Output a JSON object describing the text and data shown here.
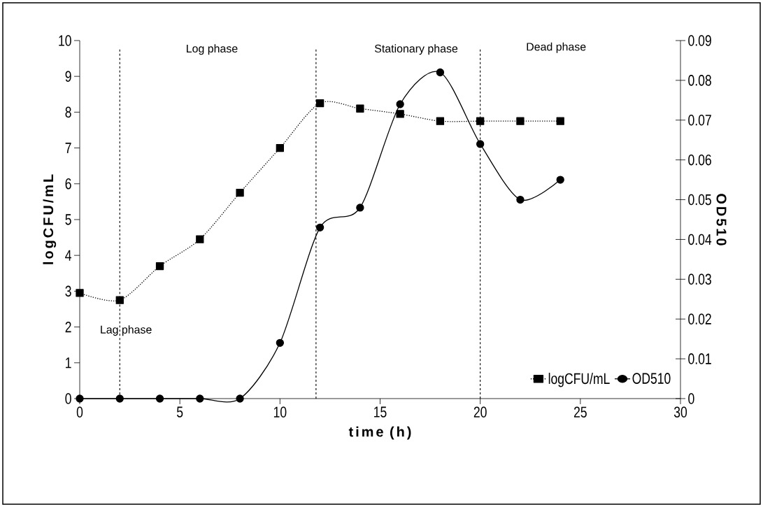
{
  "chart_data": {
    "type": "line",
    "xlabel": "time (h)",
    "ylabel": "logCFU/mL",
    "y2label": "OD510",
    "x": [
      0,
      2,
      4,
      6,
      8,
      10,
      12,
      14,
      16,
      18,
      20,
      22,
      24
    ],
    "series": [
      {
        "name": "logCFU/mL",
        "color": "#000000",
        "marker": "square",
        "line_style": "dotted",
        "values": [
          2.95,
          2.75,
          3.7,
          4.45,
          5.75,
          7.0,
          8.25,
          8.1,
          7.95,
          7.75,
          7.75,
          7.75,
          7.75
        ]
      },
      {
        "name": "OD510",
        "color": "#000000",
        "marker": "circle",
        "line_style": "solid",
        "axis": "y2",
        "values": [
          0,
          0,
          0,
          0,
          0,
          0.014,
          0.043,
          0.048,
          0.074,
          0.082,
          0.064,
          0.05,
          0.055
        ]
      }
    ],
    "xlim": [
      0,
      30
    ],
    "xticks": [
      0,
      5,
      10,
      15,
      20,
      25,
      30
    ],
    "ylim": [
      0,
      10
    ],
    "yticks": [
      0,
      1,
      2,
      3,
      4,
      5,
      6,
      7,
      8,
      9,
      10
    ],
    "y2lim": [
      0,
      0.09
    ],
    "y2ticks": [
      0,
      0.01,
      0.02,
      0.03,
      0.04,
      0.05,
      0.06,
      0.07,
      0.08,
      0.09
    ],
    "ref_lines": [
      {
        "axis": "x",
        "value": 2,
        "line_style": "dashed"
      },
      {
        "axis": "x",
        "value": 11.8,
        "line_style": "dashed"
      },
      {
        "axis": "x",
        "value": 20,
        "line_style": "dashed"
      }
    ],
    "annotations": [
      "Lag phase",
      "Log phase",
      "Stationary phase",
      "Dead phase"
    ],
    "legend": "bottom right",
    "grid": false
  }
}
